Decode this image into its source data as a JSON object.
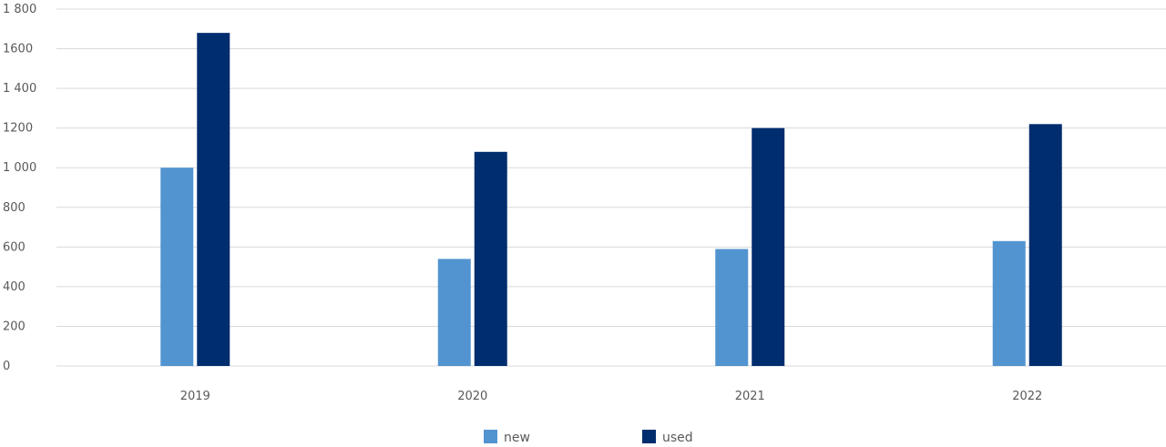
{
  "chart_data": {
    "type": "bar",
    "categories": [
      "2019",
      "2020",
      "2021",
      "2022"
    ],
    "series": [
      {
        "name": "new",
        "values": [
          1000,
          540,
          590,
          630
        ],
        "color": "#5294d0"
      },
      {
        "name": "used",
        "values": [
          1680,
          1080,
          1200,
          1220
        ],
        "color": "#002d6e"
      }
    ],
    "y_ticks": [
      "0",
      "200",
      "400",
      "600",
      "800",
      "1 000",
      "1200",
      "1 400",
      "1600",
      "1 800"
    ],
    "ylim": [
      0,
      1800
    ],
    "grid": true,
    "legend_position": "bottom"
  }
}
